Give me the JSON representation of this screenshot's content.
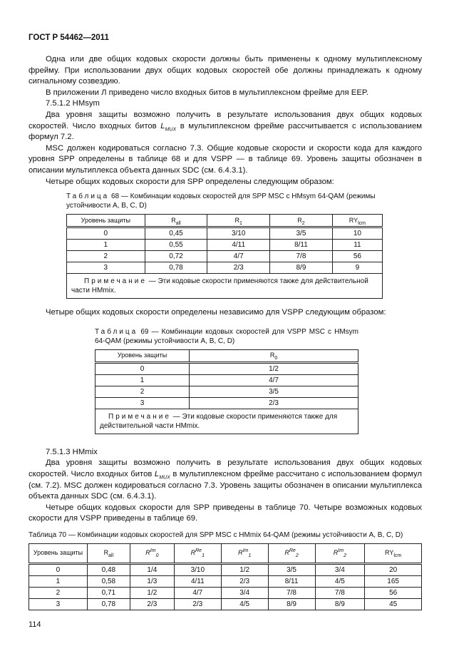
{
  "header": "ГОСТ Р 54462—2011",
  "paras1": [
    "Одна или две общих кодовых скорости должны быть применены к одному мультиплексному фрейму. При использовании двух общих кодовых скоростей обе должны принадлежать к одному сигнальному созвездию.",
    "В приложении Л приведено число входных битов в мультиплексном фрейме для EEP.",
    "7.5.1.2 HMsym",
    "Два уровня защиты возможно получить в результате использования двух общих кодовых скоростей. Число входных битов L_MUX в мультиплексном фрейме рассчитывается с использованием формул 7.2.",
    "MSC должен кодироваться согласно 7.3. Общие кодовые скорости и скорости кода для каждого уровня SPP определены в таблице 68 и для VSPP — в таблице 69. Уровень защиты обозначен в описании мультиплекса объекта данных SDC (см. 6.4.3.1).",
    "Четыре общих кодовых скорости для SPP определены следующим образом:"
  ],
  "t68": {
    "caption_label": "Таблица",
    "caption": "68 — Комбинации кодовых скоростей для SPP MSC с HMsym 64-QAM (режимы устойчивости A, B, C, D)",
    "headers": [
      "Уровень защиты",
      "R",
      "R",
      "R",
      "RY"
    ],
    "header_subs": [
      "",
      "all",
      "1",
      "2",
      "lcm"
    ],
    "rows": [
      [
        "0",
        "0,45",
        "3/10",
        "3/5",
        "10"
      ],
      [
        "1",
        "0,55",
        "4/11",
        "8/11",
        "11"
      ],
      [
        "2",
        "0,72",
        "4/7",
        "7/8",
        "56"
      ],
      [
        "3",
        "0,78",
        "2/3",
        "8/9",
        "9"
      ]
    ],
    "note_label": "Примечание",
    "note": "— Эти кодовые скорости применяются также для действительной части HMmix."
  },
  "para_between": "Четыре общих кодовых скорости определены независимо для VSPP следующим образом:",
  "t69": {
    "caption_label": "Таблица",
    "caption": "69 — Комбинации кодовых скоростей для VSPP MSC с HMsym 64-QAM (режимы устойчивости A, B, C, D)",
    "headers": [
      "Уровень защиты",
      "R"
    ],
    "header_subs": [
      "",
      "0"
    ],
    "rows": [
      [
        "0",
        "1/2"
      ],
      [
        "1",
        "4/7"
      ],
      [
        "2",
        "3/5"
      ],
      [
        "3",
        "2/3"
      ]
    ],
    "note_label": "Примечание",
    "note": "— Эти кодовые скорости применяются также для действительной части HMmix."
  },
  "paras2": [
    "7.5.1.3 HMmix",
    "Два уровня защиты возможно получить в результате использования двух общих кодовых скоростей. Число входных битов L_MUX в мультиплексном фрейме рассчитано с использованием формул (см. 7.2). MSC должен кодироваться согласно 7.3. Уровень защиты обозначен в описании мультиплекса объекта данных SDC (см. 6.4.3.1).",
    "Четыре общих кодовых скорости для SPP приведены в таблице 70. Четыре возможных кодовых скорости для VSPP приведены в таблице 69."
  ],
  "t70": {
    "caption_label": "Таблица",
    "caption": "70 — Комбинации кодовых скоростей для SPP MSC с HMmix 64-QAM (режимы устойчивости A, B, C, D)",
    "headers": [
      "Уровень защиты",
      "R",
      "R",
      "R",
      "R",
      "R",
      "R",
      "RY"
    ],
    "header_subs": [
      "",
      "all",
      "0",
      "1",
      "1",
      "2",
      "2",
      "lcm"
    ],
    "header_sups": [
      "",
      "",
      "Im",
      "Re",
      "Im",
      "Re",
      "Im",
      ""
    ],
    "rows": [
      [
        "0",
        "0,48",
        "1/4",
        "3/10",
        "1/2",
        "3/5",
        "3/4",
        "20"
      ],
      [
        "1",
        "0,58",
        "1/3",
        "4/11",
        "2/3",
        "8/11",
        "4/5",
        "165"
      ],
      [
        "2",
        "0,71",
        "1/2",
        "4/7",
        "3/4",
        "7/8",
        "7/8",
        "56"
      ],
      [
        "3",
        "0,78",
        "2/3",
        "2/3",
        "4/5",
        "8/9",
        "8/9",
        "45"
      ]
    ]
  },
  "page_number": "114"
}
